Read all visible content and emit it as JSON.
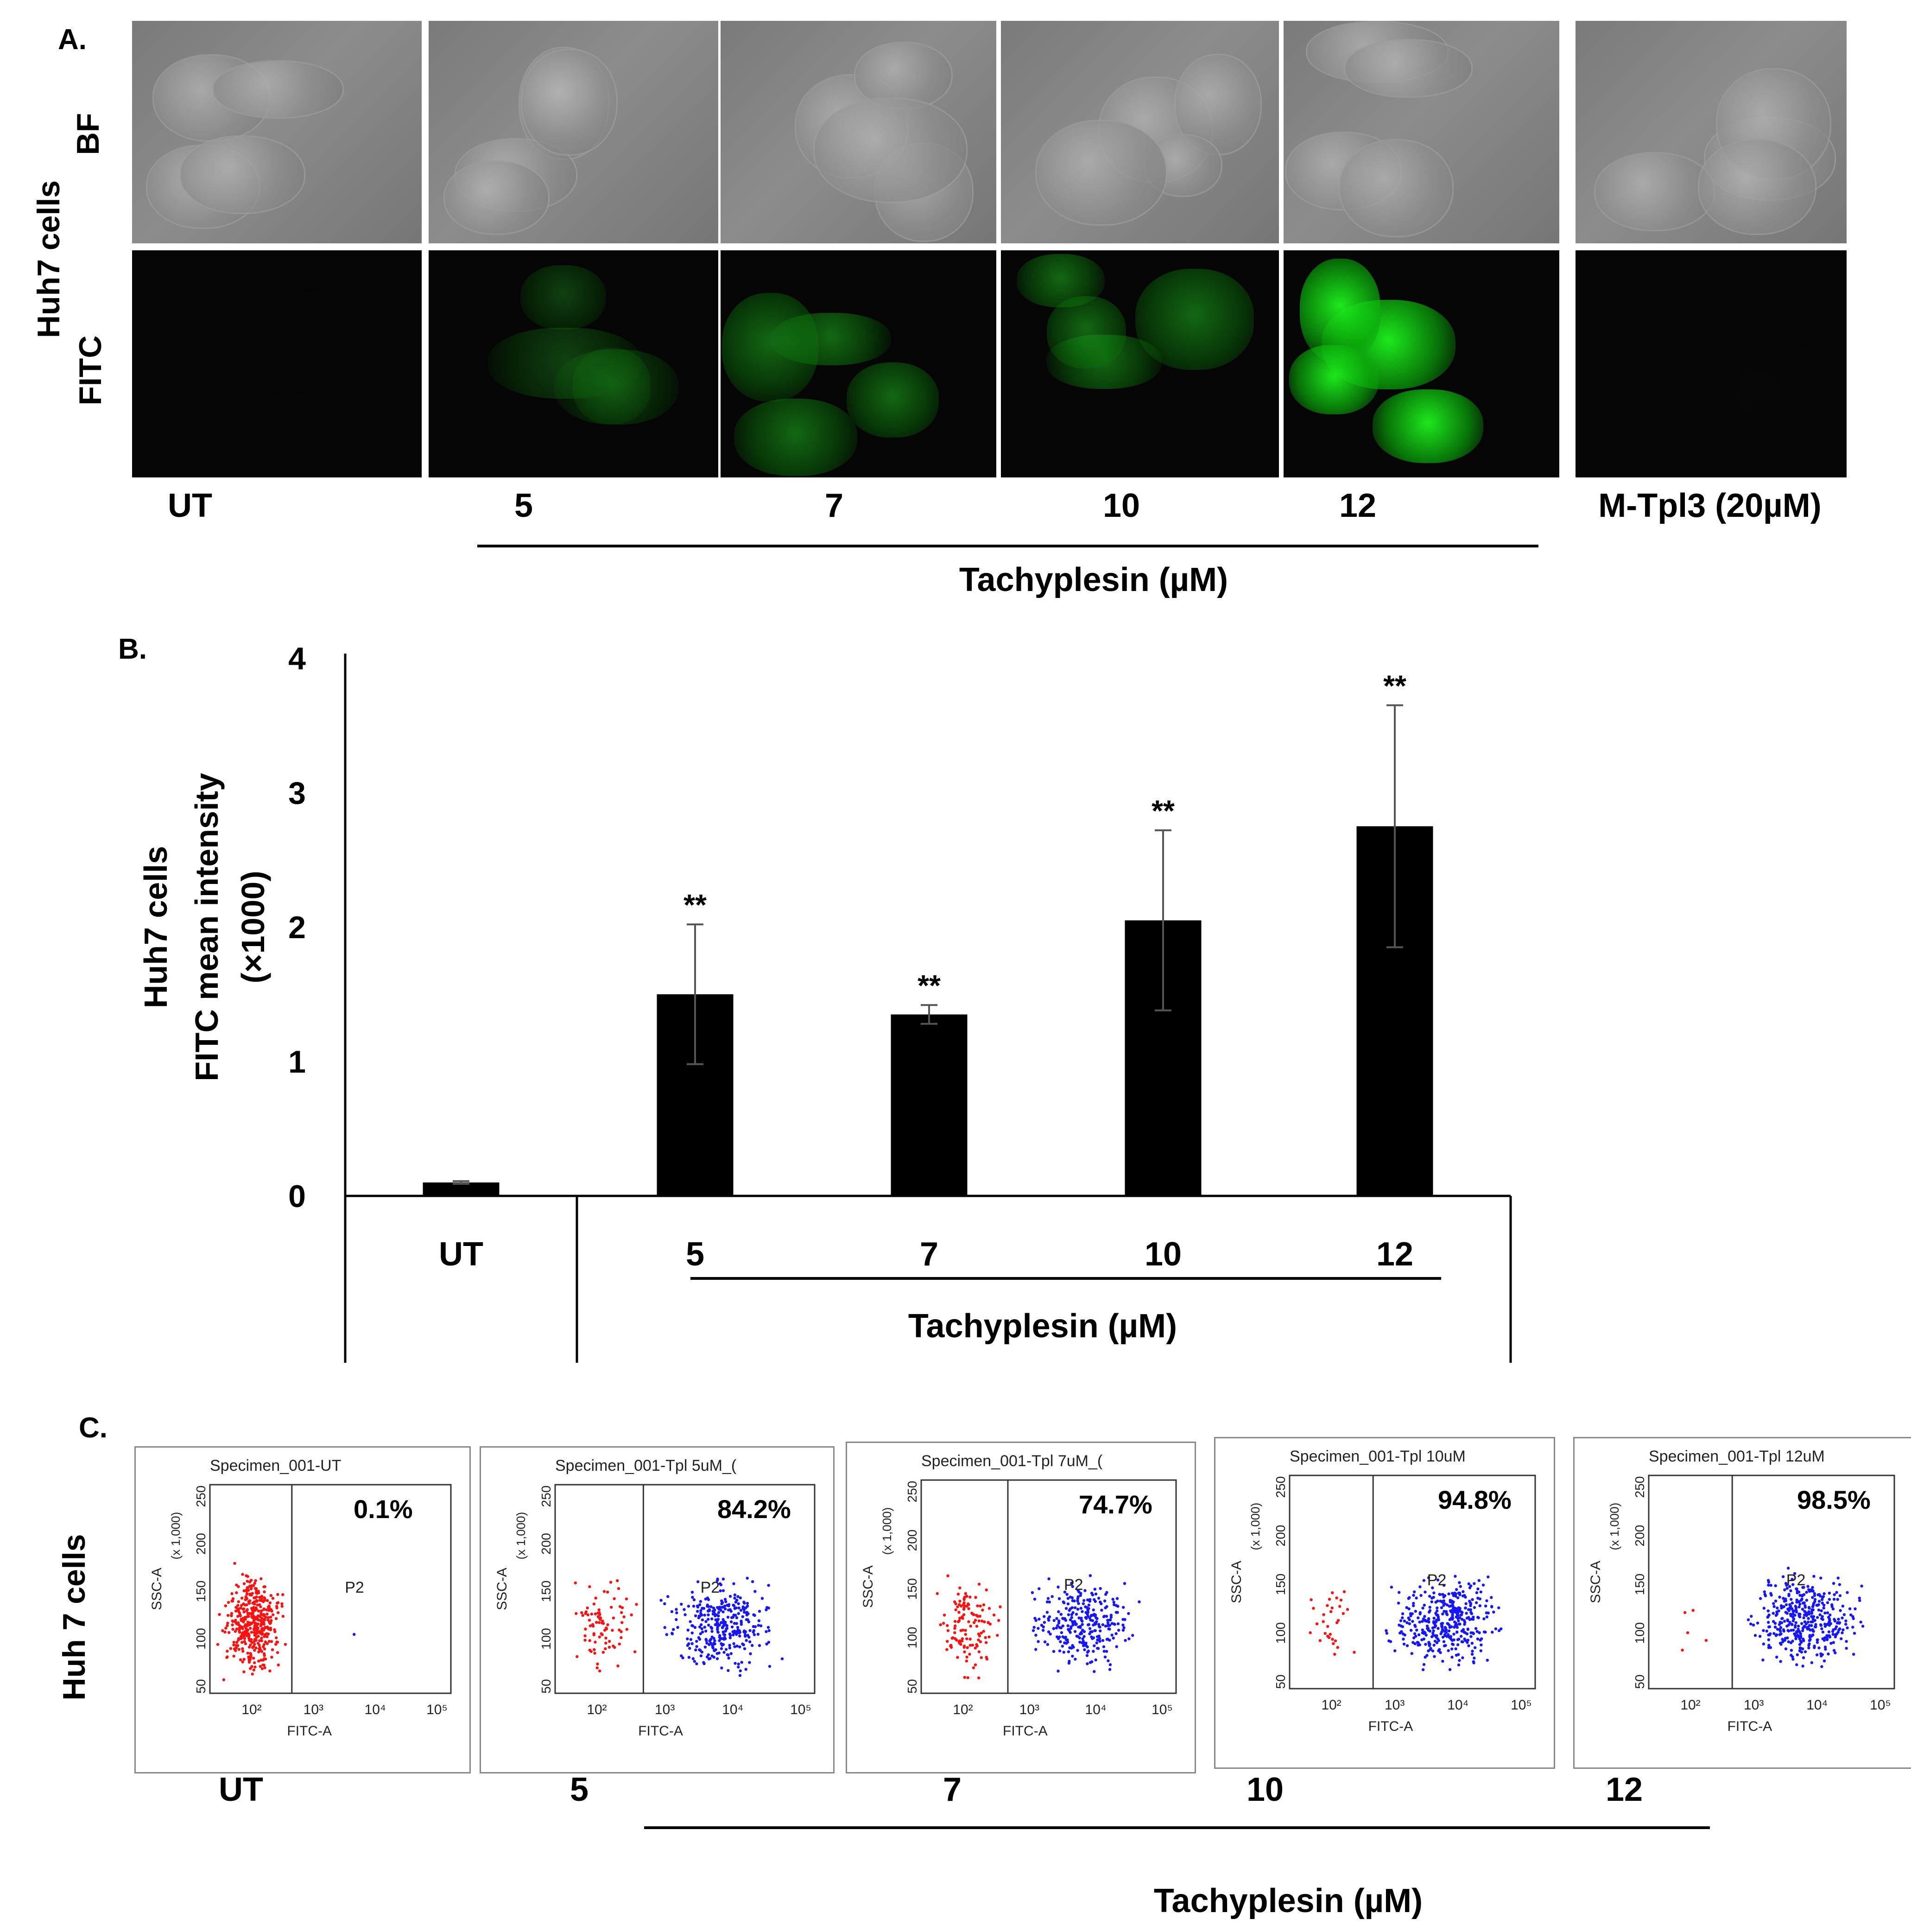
{
  "panel_a": {
    "label": "A.",
    "side_label": "Huh7 cells",
    "rows": [
      "BF",
      "FITC"
    ],
    "conditions": [
      "UT",
      "5",
      "7",
      "10",
      "12",
      "M-Tpl3 (20µM)"
    ],
    "group_label": "Tachyplesin (µM)",
    "fitc_intensity": [
      0.02,
      0.45,
      0.6,
      0.6,
      0.95,
      0.02
    ]
  },
  "panel_b": {
    "label": "B.",
    "group_label": "Tachyplesin (µM)",
    "chart_data": {
      "type": "bar",
      "categories": [
        "UT",
        "5",
        "7",
        "10",
        "12"
      ],
      "values": [
        0.1,
        1.5,
        1.35,
        2.05,
        2.75
      ],
      "errors": [
        0.01,
        0.52,
        0.07,
        0.67,
        0.9
      ],
      "significance": [
        "",
        "**",
        "**",
        "**",
        "**"
      ],
      "ylabel_lines": [
        "Huh7 cells",
        "FITC mean intensity",
        "(×1000)"
      ],
      "yticks": [
        "0",
        "1",
        "2",
        "3",
        "4"
      ],
      "ylim": [
        0,
        4
      ],
      "bar_color": "#000000"
    }
  },
  "panel_c": {
    "label": "C.",
    "side_label": "Huh 7 cells",
    "group_label": "Tachyplesin (µM)",
    "y_axis": "SSC-A",
    "y_unit": "(x 1,000)",
    "x_axis": "FITC-A",
    "gate": "P2",
    "yticks": [
      "250",
      "200",
      "150",
      "100",
      "50"
    ],
    "xticks": [
      "10²",
      "10³",
      "10⁴",
      "10⁵"
    ],
    "plots": [
      {
        "title": "Specimen_001-UT",
        "percent": "0.1%",
        "condition": "UT",
        "positive_fraction": 0.001
      },
      {
        "title": "Specimen_001-Tpl 5uM_(",
        "percent": "84.2%",
        "condition": "5",
        "positive_fraction": 0.842
      },
      {
        "title": "Specimen_001-Tpl 7uM_(",
        "percent": "74.7%",
        "condition": "7",
        "positive_fraction": 0.747
      },
      {
        "title": "Specimen_001-Tpl 10uM",
        "percent": "94.8%",
        "condition": "10",
        "positive_fraction": 0.948
      },
      {
        "title": "Specimen_001-Tpl 12uM",
        "percent": "98.5%",
        "condition": "12",
        "positive_fraction": 0.985
      }
    ]
  }
}
